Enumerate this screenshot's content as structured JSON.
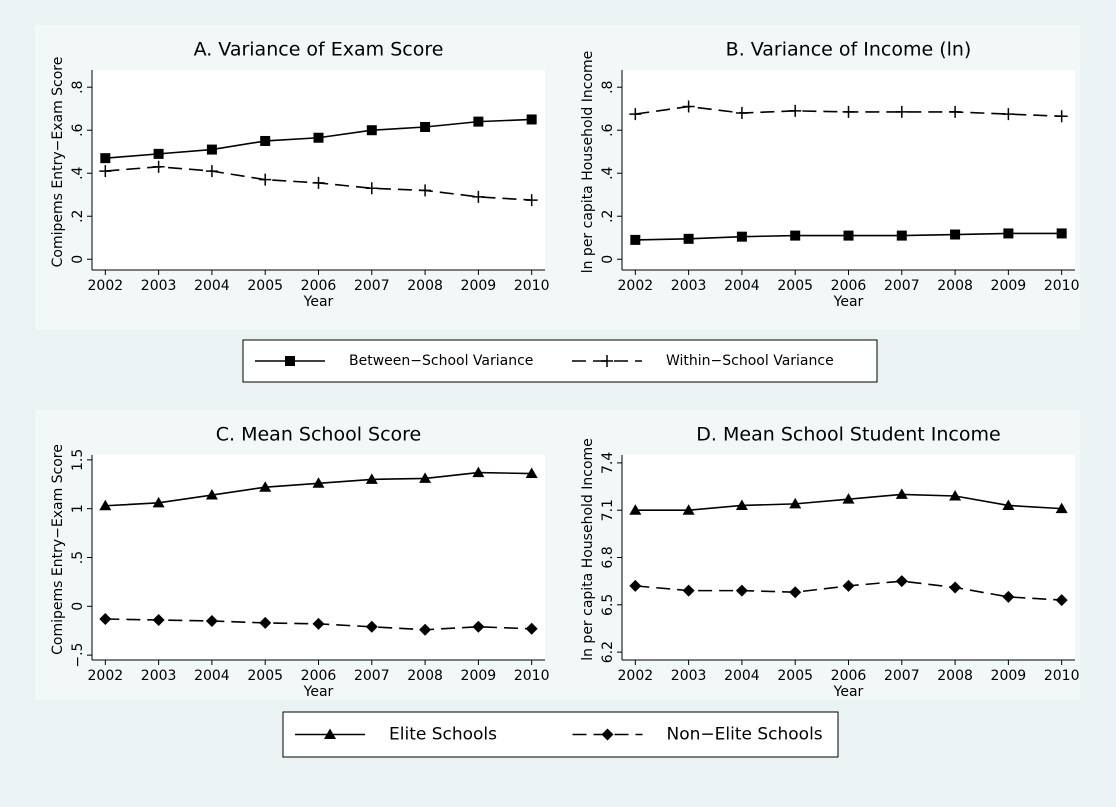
{
  "chart_data": [
    {
      "type": "line",
      "title": "A. Variance of Exam Score",
      "xlabel": "Year",
      "ylabel": "Comipems Entry−Exam Score",
      "x": [
        2002,
        2003,
        2004,
        2005,
        2006,
        2007,
        2008,
        2009,
        2010
      ],
      "xlim": [
        2001.75,
        2010.25
      ],
      "xticks": [
        2002,
        2003,
        2004,
        2005,
        2006,
        2007,
        2008,
        2009,
        2010
      ],
      "ylim": [
        -0.05,
        0.88
      ],
      "yticks": [
        0,
        {
          "value": 0.2,
          "label": ".2"
        },
        {
          "value": 0.4,
          "label": ".4"
        },
        {
          "value": 0.6,
          "label": ".6"
        },
        {
          "value": 0.8,
          "label": ".8"
        }
      ],
      "grid": false,
      "series": [
        {
          "name": "Between−School Variance",
          "color": "#000000",
          "marker": "square",
          "dash": "solid",
          "values": [
            0.47,
            0.49,
            0.51,
            0.55,
            0.565,
            0.6,
            0.615,
            0.64,
            0.65
          ]
        },
        {
          "name": "Within−School Variance",
          "color": "#000000",
          "marker": "plus",
          "dash": "dashed",
          "values": [
            0.41,
            0.43,
            0.41,
            0.37,
            0.355,
            0.33,
            0.32,
            0.29,
            0.275
          ]
        }
      ]
    },
    {
      "type": "line",
      "title": "B. Variance of Income (ln)",
      "xlabel": "Year",
      "ylabel": "ln per capita Household Income",
      "x": [
        2002,
        2003,
        2004,
        2005,
        2006,
        2007,
        2008,
        2009,
        2010
      ],
      "xlim": [
        2001.75,
        2010.25
      ],
      "xticks": [
        2002,
        2003,
        2004,
        2005,
        2006,
        2007,
        2008,
        2009,
        2010
      ],
      "ylim": [
        -0.05,
        0.88
      ],
      "yticks": [
        0,
        {
          "value": 0.2,
          "label": ".2"
        },
        {
          "value": 0.4,
          "label": ".4"
        },
        {
          "value": 0.6,
          "label": ".6"
        },
        {
          "value": 0.8,
          "label": ".8"
        }
      ],
      "grid": false,
      "series": [
        {
          "color": "#000000",
          "marker": "square",
          "dash": "solid",
          "values": [
            0.09,
            0.095,
            0.105,
            0.11,
            0.11,
            0.11,
            0.115,
            0.12,
            0.12
          ]
        },
        {
          "color": "#000000",
          "marker": "plus",
          "dash": "dashed",
          "values": [
            0.675,
            0.71,
            0.68,
            0.69,
            0.685,
            0.685,
            0.685,
            0.675,
            0.665
          ]
        }
      ]
    },
    {
      "type": "line",
      "title": "C. Mean School Score",
      "xlabel": "Year",
      "ylabel": "Comipems Entry−Exam Score",
      "x": [
        2002,
        2003,
        2004,
        2005,
        2006,
        2007,
        2008,
        2009,
        2010
      ],
      "xlim": [
        2001.75,
        2010.25
      ],
      "xticks": [
        2002,
        2003,
        2004,
        2005,
        2006,
        2007,
        2008,
        2009,
        2010
      ],
      "ylim": [
        -0.55,
        1.55
      ],
      "yticks": [
        {
          "value": -0.5,
          "label": "−.5"
        },
        0,
        {
          "value": 0.5,
          "label": ".5"
        },
        1,
        1.5
      ],
      "grid": false,
      "series": [
        {
          "name": "Elite Schools",
          "color": "#000000",
          "marker": "triangle",
          "dash": "solid",
          "values": [
            1.03,
            1.06,
            1.14,
            1.22,
            1.26,
            1.3,
            1.31,
            1.37,
            1.36
          ]
        },
        {
          "name": "Non−Elite Schools",
          "color": "#000000",
          "marker": "diamond",
          "dash": "dashed",
          "values": [
            -0.13,
            -0.14,
            -0.15,
            -0.17,
            -0.18,
            -0.21,
            -0.24,
            -0.21,
            -0.23
          ]
        }
      ]
    },
    {
      "type": "line",
      "title": "D. Mean School Student Income",
      "xlabel": "Year",
      "ylabel": "ln per capita Household Income",
      "x": [
        2002,
        2003,
        2004,
        2005,
        2006,
        2007,
        2008,
        2009,
        2010
      ],
      "xlim": [
        2001.75,
        2010.25
      ],
      "xticks": [
        2002,
        2003,
        2004,
        2005,
        2006,
        2007,
        2008,
        2009,
        2010
      ],
      "ylim": [
        6.15,
        7.45
      ],
      "yticks": [
        6.2,
        6.5,
        6.8,
        7.1,
        7.4
      ],
      "grid": false,
      "series": [
        {
          "color": "#000000",
          "marker": "triangle",
          "dash": "solid",
          "values": [
            7.1,
            7.1,
            7.13,
            7.14,
            7.17,
            7.2,
            7.19,
            7.13,
            7.11
          ]
        },
        {
          "color": "#000000",
          "marker": "diamond",
          "dash": "dashed",
          "values": [
            6.62,
            6.59,
            6.59,
            6.58,
            6.62,
            6.65,
            6.61,
            6.55,
            6.53
          ]
        }
      ]
    }
  ]
}
